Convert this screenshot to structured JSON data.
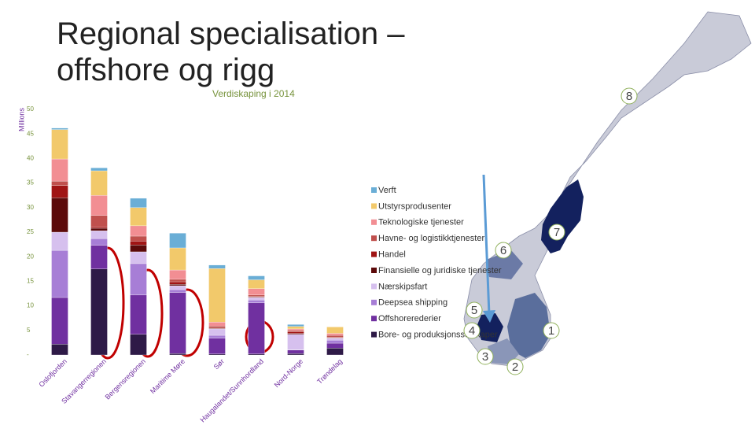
{
  "chart_data": {
    "type": "bar",
    "stacked": true,
    "title": "Regional specialisation – offshore og rigg",
    "subtitle": "Verdiskaping i 2014",
    "y_label": "Millions",
    "categories": [
      "Oslofjorden",
      "Stavangerregionen",
      "Bergensregionen",
      "Maritime Møre",
      "Sør",
      "Haugalandet/Sunnhordland",
      "Nord-Norge",
      "Trøndelag"
    ],
    "series": [
      {
        "name": "Bore- og produksjonsselskaper",
        "color": "#2e1a47",
        "values": [
          2.2,
          17.5,
          4.2,
          0.3,
          0.2,
          0.2,
          0.3,
          1.4
        ]
      },
      {
        "name": "Offshorerederier",
        "color": "#7030a0",
        "values": [
          9.5,
          4.8,
          8.0,
          12.4,
          3.2,
          10.4,
          0.7,
          1.0
        ]
      },
      {
        "name": "Deepsea shipping",
        "color": "#a77ed6",
        "values": [
          9.6,
          1.4,
          6.4,
          0.6,
          0.6,
          0.6,
          0.1,
          0.6
        ]
      },
      {
        "name": "Nærskipsfart",
        "color": "#d6c0ee",
        "values": [
          3.7,
          1.6,
          2.4,
          0.8,
          1.3,
          0.5,
          3.1,
          0.4
        ]
      },
      {
        "name": "Finansielle og juridiske tjenester",
        "color": "#5c0a0a",
        "values": [
          7.0,
          0.5,
          1.4,
          0.3,
          0.1,
          0.1,
          0.2,
          0.1
        ]
      },
      {
        "name": "Handel",
        "color": "#a01414",
        "values": [
          2.5,
          0.3,
          0.8,
          0.5,
          0.2,
          0.1,
          0.3,
          0.1
        ]
      },
      {
        "name": "Havne- og logistikktjenester",
        "color": "#c0504d",
        "values": [
          0.9,
          2.3,
          1.0,
          0.5,
          0.3,
          0.3,
          0.3,
          0.4
        ]
      },
      {
        "name": "Teknologiske tjenester",
        "color": "#f28e93",
        "values": [
          4.5,
          4.1,
          2.1,
          1.9,
          0.8,
          1.3,
          0.3,
          0.4
        ]
      },
      {
        "name": "Utstyrsprodusenter",
        "color": "#f2c96b",
        "values": [
          6.0,
          5.0,
          3.7,
          4.5,
          10.9,
          1.8,
          0.5,
          1.3
        ]
      },
      {
        "name": "Verft",
        "color": "#6aaed6",
        "values": [
          0.3,
          0.6,
          1.9,
          3.0,
          0.7,
          0.8,
          0.4,
          0
        ]
      }
    ],
    "ylim": [
      0,
      50
    ],
    "yticks": [
      {
        "value": 0,
        "label": "-"
      },
      5,
      10,
      15,
      20,
      25,
      30,
      35,
      40,
      45,
      50
    ],
    "annotations": [
      "8",
      "7",
      "6",
      "5",
      "4",
      "3",
      "2",
      "1"
    ]
  }
}
